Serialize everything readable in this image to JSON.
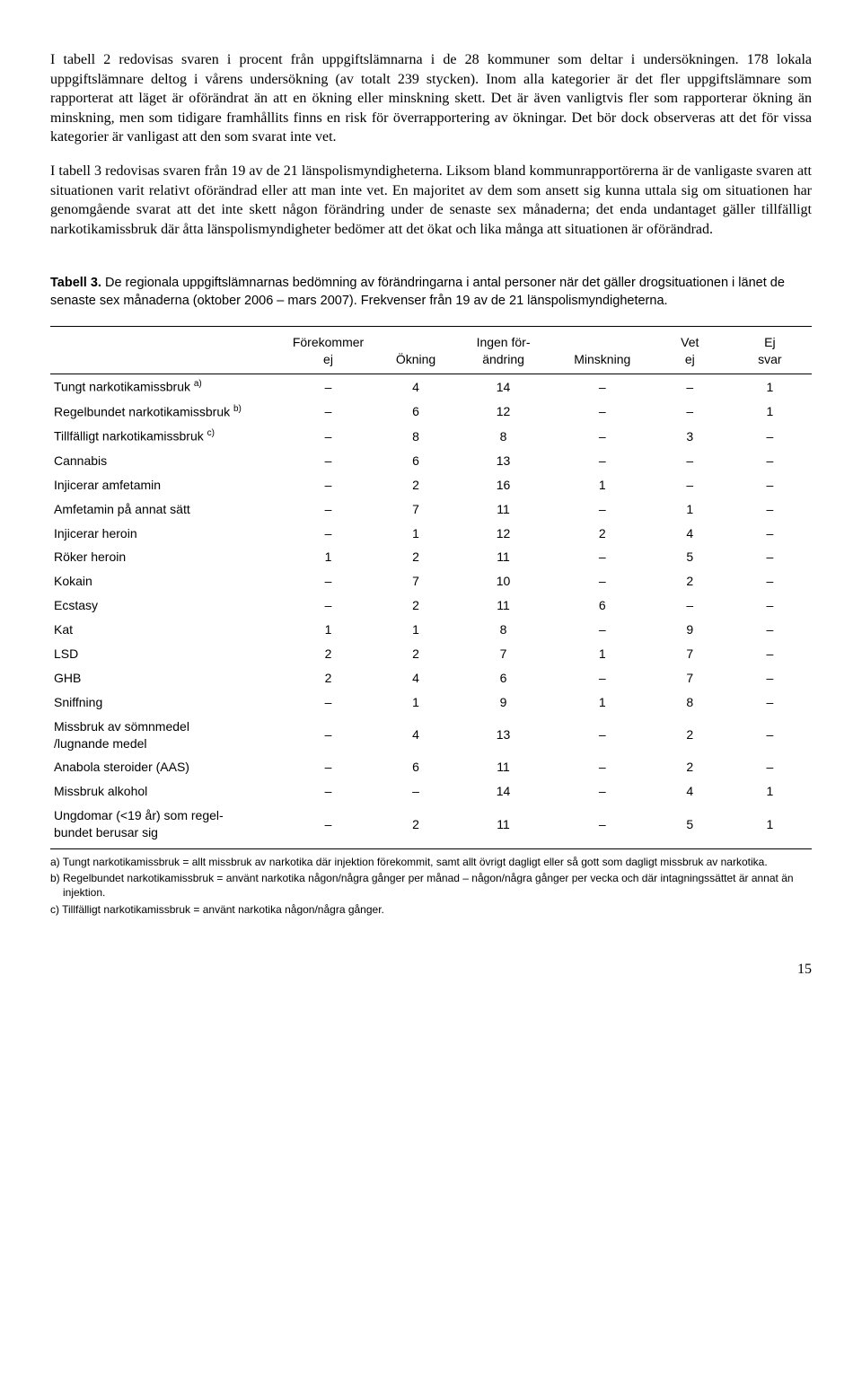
{
  "paragraphs": {
    "p1": "I tabell 2 redovisas svaren i procent från uppgiftslämnarna i de 28 kommuner som deltar i undersökningen. 178 lokala uppgiftslämnare deltog i vårens undersökning (av totalt 239 stycken). Inom alla kategorier är det fler uppgiftslämnare som rapporterat att läget är oförändrat än att en ökning eller minskning skett. Det är även vanligtvis fler som rapporterar ökning än minskning, men som tidigare framhållits finns en risk för överrapportering av ökningar. Det bör dock observeras att det för vissa kategorier är vanligast att den som svarat inte vet.",
    "p2": "I tabell 3 redovisas svaren från 19 av de 21 länspolismyndigheterna. Liksom bland kommunrapportörerna är de vanligaste svaren att situationen varit relativt oförändrad eller att man inte vet. En majoritet av dem som ansett sig kunna uttala sig om situationen har genomgående svarat att det inte skett någon förändring under de senaste sex månaderna; det enda undantaget gäller tillfälligt narkotikamissbruk där åtta länspolismyndigheter bedömer att det ökat och lika många att situationen är oförändrad."
  },
  "caption": {
    "label": "Tabell 3.",
    "text": " De regionala uppgiftslämnarnas bedömning av förändringarna i antal personer när det gäller drogsituationen i länet de senaste sex månaderna (oktober 2006 – mars 2007). Frekvenser från 19 av de 21 länspolismyndigheterna."
  },
  "columns": [
    "",
    "Förekommer\nej",
    "Ökning",
    "Ingen för-\nändring",
    "Minskning",
    "Vet\nej",
    "Ej\nsvar"
  ],
  "rows": [
    {
      "label": "Tungt narkotikamissbruk",
      "note": "a)",
      "cells": [
        "–",
        "4",
        "14",
        "–",
        "–",
        "1"
      ]
    },
    {
      "label": "Regelbundet narkotikamissbruk",
      "note": "b)",
      "cells": [
        "–",
        "6",
        "12",
        "–",
        "–",
        "1"
      ]
    },
    {
      "label": "Tillfälligt narkotikamissbruk",
      "note": "c)",
      "cells": [
        "–",
        "8",
        "8",
        "–",
        "3",
        "–"
      ]
    },
    {
      "label": "Cannabis",
      "note": "",
      "cells": [
        "–",
        "6",
        "13",
        "–",
        "–",
        "–"
      ]
    },
    {
      "label": "Injicerar amfetamin",
      "note": "",
      "cells": [
        "–",
        "2",
        "16",
        "1",
        "–",
        "–"
      ]
    },
    {
      "label": "Amfetamin på annat sätt",
      "note": "",
      "cells": [
        "–",
        "7",
        "11",
        "–",
        "1",
        "–"
      ]
    },
    {
      "label": "Injicerar heroin",
      "note": "",
      "cells": [
        "–",
        "1",
        "12",
        "2",
        "4",
        "–"
      ]
    },
    {
      "label": "Röker heroin",
      "note": "",
      "cells": [
        "1",
        "2",
        "11",
        "–",
        "5",
        "–"
      ]
    },
    {
      "label": "Kokain",
      "note": "",
      "cells": [
        "–",
        "7",
        "10",
        "–",
        "2",
        "–"
      ]
    },
    {
      "label": "Ecstasy",
      "note": "",
      "cells": [
        "–",
        "2",
        "11",
        "6",
        "–",
        "–"
      ]
    },
    {
      "label": "Kat",
      "note": "",
      "cells": [
        "1",
        "1",
        "8",
        "–",
        "9",
        "–"
      ]
    },
    {
      "label": "LSD",
      "note": "",
      "cells": [
        "2",
        "2",
        "7",
        "1",
        "7",
        "–"
      ]
    },
    {
      "label": "GHB",
      "note": "",
      "cells": [
        "2",
        "4",
        "6",
        "–",
        "7",
        "–"
      ]
    },
    {
      "label": "Sniffning",
      "note": "",
      "cells": [
        "–",
        "1",
        "9",
        "1",
        "8",
        "–"
      ]
    },
    {
      "label": "Missbruk av sömnmedel\n/lugnande medel",
      "note": "",
      "cells": [
        "–",
        "4",
        "13",
        "–",
        "2",
        "–"
      ]
    },
    {
      "label": "Anabola steroider (AAS)",
      "note": "",
      "cells": [
        "–",
        "6",
        "11",
        "–",
        "2",
        "–"
      ]
    },
    {
      "label": "Missbruk alkohol",
      "note": "",
      "cells": [
        "–",
        "–",
        "14",
        "–",
        "4",
        "1"
      ]
    },
    {
      "label": "Ungdomar (<19 år) som regel-\nbundet berusar sig",
      "note": "",
      "cells": [
        "–",
        "2",
        "11",
        "–",
        "5",
        "1"
      ]
    }
  ],
  "footnotes": {
    "a": "a) Tungt narkotikamissbruk = allt missbruk av narkotika där injektion förekommit, samt allt övrigt dagligt eller så gott som dagligt missbruk av narkotika.",
    "b": "b) Regelbundet narkotikamissbruk = använt narkotika någon/några gånger per månad – någon/några gånger per vecka och där intagningssättet är annat än injektion.",
    "c": "c) Tillfälligt narkotikamissbruk = använt narkotika någon/några gånger."
  },
  "pageNumber": "15",
  "style": {
    "col_widths_pct": [
      30,
      13,
      10,
      13,
      13,
      10,
      11
    ]
  }
}
